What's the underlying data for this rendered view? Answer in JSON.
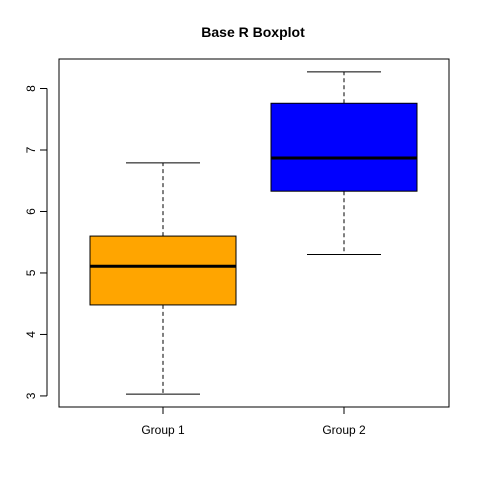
{
  "chart_data": {
    "type": "box",
    "title": "Base R Boxplot",
    "categories": [
      "Group 1",
      "Group 2"
    ],
    "series": [
      {
        "category": "Group 1",
        "color": "#ffa500",
        "whisker_low": 3.03,
        "q1": 4.48,
        "median": 5.11,
        "q3": 5.6,
        "whisker_high": 6.79
      },
      {
        "category": "Group 2",
        "color": "#0000ff",
        "whisker_low": 5.3,
        "q1": 6.33,
        "median": 6.87,
        "q3": 7.76,
        "whisker_high": 8.27
      }
    ],
    "y_ticks": [
      3,
      4,
      5,
      6,
      7,
      8
    ],
    "ylim": [
      2.82,
      8.48
    ],
    "xlabel": "",
    "ylabel": "",
    "grid": false,
    "legend": "none"
  }
}
